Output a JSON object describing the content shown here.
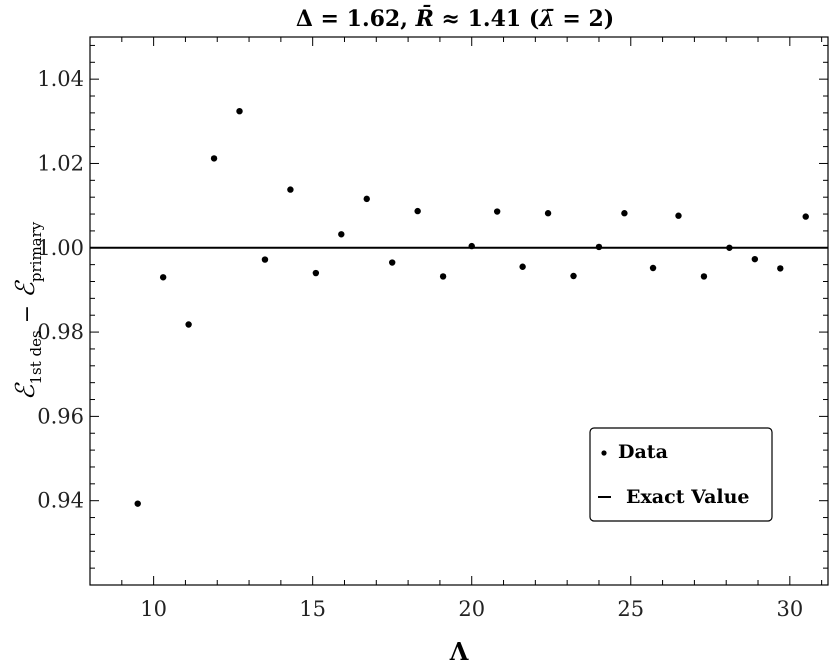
{
  "chart_data": {
    "type": "scatter",
    "title": "Δ = 1.62, R̄ ≈ 1.41 (λ̄ = 2)",
    "xlabel": "Λ",
    "ylabel": "ℰ1st des − ℰprimary",
    "xlim": [
      8,
      31.2
    ],
    "ylim": [
      0.92,
      1.05
    ],
    "x_ticks": [
      10,
      15,
      20,
      25,
      30
    ],
    "y_ticks": [
      0.94,
      0.96,
      0.98,
      1.0,
      1.02,
      1.04
    ],
    "x_tick_labels": [
      "10",
      "15",
      "20",
      "25",
      "30"
    ],
    "y_tick_labels": [
      "0.94",
      "0.96",
      "0.98",
      "1.00",
      "1.02",
      "1.04"
    ],
    "grid": false,
    "legend_position": "bottom-right",
    "series": [
      {
        "name": "Data",
        "kind": "points",
        "color": "#000000",
        "x": [
          9.5,
          10.3,
          11.1,
          11.9,
          12.7,
          13.5,
          14.3,
          15.1,
          15.9,
          16.7,
          17.5,
          18.3,
          19.1,
          20.0,
          20.8,
          21.6,
          22.4,
          23.2,
          24.0,
          24.8,
          25.7,
          26.5,
          27.3,
          28.1,
          28.9,
          29.7,
          30.5
        ],
        "y": [
          0.9393,
          0.993,
          0.9818,
          1.0212,
          1.0324,
          0.9972,
          1.0138,
          0.994,
          1.0032,
          1.0116,
          0.9965,
          1.0087,
          0.9932,
          1.0004,
          1.0086,
          0.9955,
          1.0082,
          0.9933,
          1.0002,
          1.0082,
          0.9952,
          1.0076,
          0.9932,
          1.0,
          0.9973,
          0.9951,
          1.0074
        ]
      },
      {
        "name": "Exact Value",
        "kind": "hline",
        "color": "#000000",
        "y": 1.0
      }
    ]
  }
}
